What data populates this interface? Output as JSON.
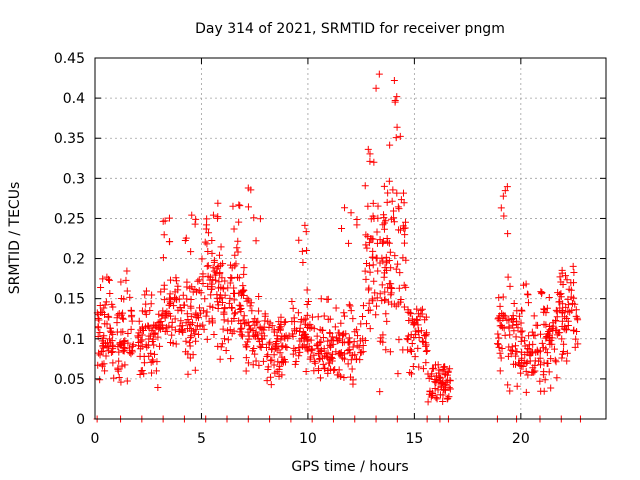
{
  "chart_data": {
    "type": "scatter",
    "title": "Day 314 of 2021, SRMTID for receiver pngm",
    "xlabel": "GPS time / hours",
    "ylabel": "SRMTID / TECUs",
    "xlim": [
      0,
      24
    ],
    "ylim": [
      0,
      0.45
    ],
    "xticks": [
      0,
      5,
      10,
      15,
      20
    ],
    "xtick_labels": [
      "0",
      "5",
      "10",
      "15",
      "20"
    ],
    "yticks": [
      0,
      0.05,
      0.1,
      0.15,
      0.2,
      0.25,
      0.3,
      0.35,
      0.4,
      0.45
    ],
    "ytick_labels": [
      "0",
      "0.05",
      "0.1",
      "0.15",
      "0.2",
      "0.25",
      "0.3",
      "0.35",
      "0.4",
      "0.45"
    ],
    "grid": true,
    "marker": "+",
    "color": "#ff0000",
    "series": [
      {
        "name": "SRMTID",
        "clusters": [
          {
            "start": 0.1,
            "end": 0.9,
            "base": 0.1,
            "spread": 0.035,
            "peak": 0.18,
            "n": 60
          },
          {
            "start": 1.0,
            "end": 1.8,
            "base": 0.095,
            "spread": 0.03,
            "peak": 0.19,
            "n": 50
          },
          {
            "start": 2.0,
            "end": 3.0,
            "base": 0.1,
            "spread": 0.035,
            "peak": 0.16,
            "n": 60
          },
          {
            "start": 3.0,
            "end": 4.0,
            "base": 0.14,
            "spread": 0.04,
            "peak": 0.27,
            "n": 60
          },
          {
            "start": 4.0,
            "end": 5.0,
            "base": 0.12,
            "spread": 0.04,
            "peak": 0.27,
            "n": 60
          },
          {
            "start": 5.0,
            "end": 6.0,
            "base": 0.16,
            "spread": 0.045,
            "peak": 0.27,
            "n": 70
          },
          {
            "start": 6.0,
            "end": 7.0,
            "base": 0.14,
            "spread": 0.045,
            "peak": 0.28,
            "n": 70
          },
          {
            "start": 7.0,
            "end": 8.0,
            "base": 0.11,
            "spread": 0.04,
            "peak": 0.3,
            "n": 60
          },
          {
            "start": 8.0,
            "end": 9.2,
            "base": 0.09,
            "spread": 0.025,
            "peak": 0.13,
            "n": 60
          },
          {
            "start": 9.2,
            "end": 10.2,
            "base": 0.11,
            "spread": 0.03,
            "peak": 0.245,
            "n": 60
          },
          {
            "start": 10.2,
            "end": 11.2,
            "base": 0.09,
            "spread": 0.03,
            "peak": 0.15,
            "n": 60
          },
          {
            "start": 11.2,
            "end": 12.6,
            "base": 0.09,
            "spread": 0.035,
            "peak": 0.28,
            "n": 70
          },
          {
            "start": 12.6,
            "end": 13.6,
            "base": 0.18,
            "spread": 0.08,
            "peak": 0.43,
            "n": 70
          },
          {
            "start": 13.6,
            "end": 14.6,
            "base": 0.2,
            "spread": 0.085,
            "peak": 0.43,
            "n": 70
          },
          {
            "start": 14.6,
            "end": 15.6,
            "base": 0.1,
            "spread": 0.035,
            "peak": 0.14,
            "n": 50
          },
          {
            "start": 15.6,
            "end": 16.7,
            "base": 0.045,
            "spread": 0.02,
            "peak": 0.07,
            "n": 60
          },
          {
            "start": 18.9,
            "end": 19.7,
            "base": 0.11,
            "spread": 0.04,
            "peak": 0.29,
            "n": 50
          },
          {
            "start": 19.7,
            "end": 20.7,
            "base": 0.09,
            "spread": 0.035,
            "peak": 0.17,
            "n": 60
          },
          {
            "start": 20.7,
            "end": 21.7,
            "base": 0.09,
            "spread": 0.035,
            "peak": 0.16,
            "n": 60
          },
          {
            "start": 21.7,
            "end": 22.7,
            "base": 0.13,
            "spread": 0.035,
            "peak": 0.195,
            "n": 60
          }
        ],
        "zero_points_x": [
          0.1,
          1.2,
          2.2,
          3.2,
          4.2,
          5.2,
          6.2,
          7.2,
          8.2,
          9.2,
          10.2,
          11.2,
          12.2,
          13.2,
          14.2,
          15.6,
          16.2,
          16.6,
          18.9,
          19.8,
          20.9,
          21.9,
          22.8
        ]
      }
    ]
  }
}
